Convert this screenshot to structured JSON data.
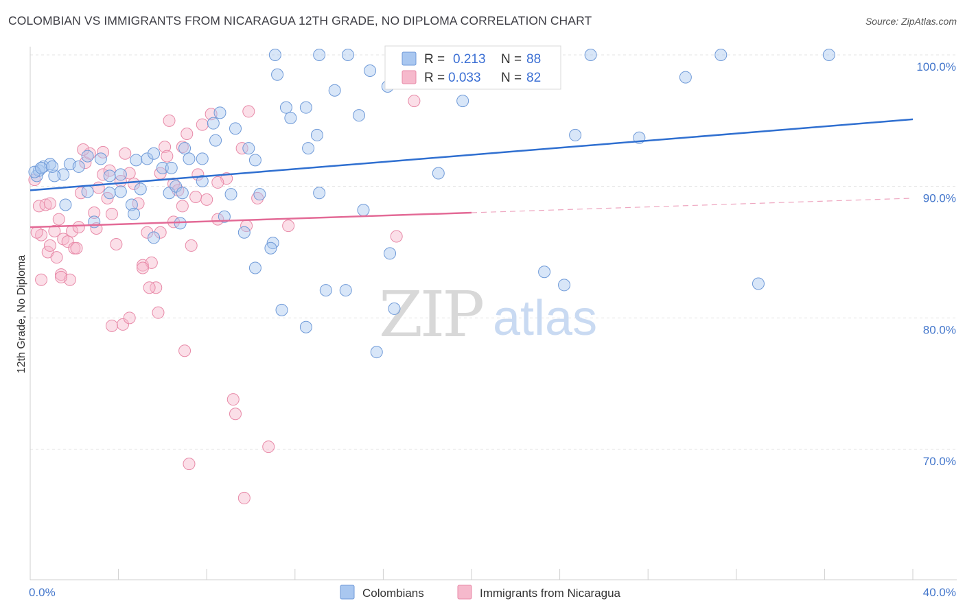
{
  "title": "COLOMBIAN VS IMMIGRANTS FROM NICARAGUA 12TH GRADE, NO DIPLOMA CORRELATION CHART",
  "source": "Source: ZipAtlas.com",
  "watermark": {
    "zip": "ZIP",
    "atlas": "atlas"
  },
  "colors": {
    "blue_fill": "#a9c7f0",
    "blue_stroke": "#6f9ad8",
    "blue_line": "#2f6fd0",
    "pink_fill": "#f6b9cc",
    "pink_stroke": "#e88aa8",
    "pink_line": "#e36a96",
    "grid": "#e3e3e3",
    "label_blue": "#4477cc"
  },
  "legend": {
    "rows": [
      {
        "r_label": "R =",
        "r_value": "0.213",
        "n_label": "N =",
        "n_value": "88"
      },
      {
        "r_label": "R =",
        "r_value": "0.033",
        "n_label": "N =",
        "n_value": "82"
      }
    ]
  },
  "chart_data": {
    "type": "scatter",
    "title": "COLOMBIAN VS IMMIGRANTS FROM NICARAGUA 12TH GRADE, NO DIPLOMA CORRELATION CHART",
    "xlabel": "",
    "ylabel": "12th Grade, No Diploma",
    "x_unit": "%",
    "xlim": [
      0,
      40
    ],
    "ylim": [
      60.5,
      101.5
    ],
    "x_tick_labels": [
      "0.0%",
      "40.0%"
    ],
    "y_ticks": [
      70,
      80,
      90,
      100
    ],
    "y_tick_labels": [
      "70.0%",
      "80.0%",
      "90.0%",
      "100.0%"
    ],
    "grid": "horizontal dashed",
    "legend_position": "top-center",
    "series": [
      {
        "name": "Colombians",
        "R": 0.213,
        "N": 88,
        "trend": {
          "x0": 0,
          "y0": 89.7,
          "x1": 40,
          "y1": 95.1,
          "style": "solid"
        },
        "points": [
          [
            0.3,
            90.8
          ],
          [
            0.4,
            91.2
          ],
          [
            0.6,
            91.5
          ],
          [
            0.9,
            91.7
          ],
          [
            1.5,
            90.9
          ],
          [
            1.8,
            91.7
          ],
          [
            2.2,
            91.5
          ],
          [
            2.6,
            92.3
          ],
          [
            3.2,
            92.1
          ],
          [
            3.6,
            90.8
          ],
          [
            4.1,
            90.9
          ],
          [
            4.8,
            92.0
          ],
          [
            5.3,
            92.1
          ],
          [
            5.6,
            92.5
          ],
          [
            6.0,
            91.4
          ],
          [
            6.4,
            91.4
          ],
          [
            7.0,
            92.9
          ],
          [
            7.2,
            92.1
          ],
          [
            7.8,
            92.1
          ],
          [
            8.3,
            94.8
          ],
          [
            8.6,
            95.6
          ],
          [
            8.4,
            93.5
          ],
          [
            9.3,
            94.4
          ],
          [
            9.9,
            92.9
          ],
          [
            10.2,
            92.0
          ],
          [
            11.1,
            100.0
          ],
          [
            11.2,
            98.5
          ],
          [
            11.6,
            96.0
          ],
          [
            11.8,
            95.2
          ],
          [
            12.6,
            92.9
          ],
          [
            12.5,
            96.0
          ],
          [
            13.0,
            93.9
          ],
          [
            13.1,
            100.0
          ],
          [
            13.8,
            97.3
          ],
          [
            14.4,
            100.0
          ],
          [
            14.9,
            95.4
          ],
          [
            15.4,
            98.8
          ],
          [
            16.2,
            97.6
          ],
          [
            17.2,
            100.0
          ],
          [
            17.8,
            100.0
          ],
          [
            18.3,
            100.0
          ],
          [
            19.6,
            96.5
          ],
          [
            21.8,
            100.0
          ],
          [
            22.9,
            100.0
          ],
          [
            24.7,
            93.9
          ],
          [
            25.4,
            100.0
          ],
          [
            27.6,
            93.7
          ],
          [
            29.7,
            98.3
          ],
          [
            31.3,
            100.0
          ],
          [
            36.2,
            100.0
          ],
          [
            1.1,
            90.8
          ],
          [
            1.6,
            88.6
          ],
          [
            2.6,
            89.6
          ],
          [
            2.9,
            87.3
          ],
          [
            3.6,
            89.5
          ],
          [
            4.1,
            89.6
          ],
          [
            4.6,
            88.6
          ],
          [
            4.7,
            87.9
          ],
          [
            5.0,
            89.8
          ],
          [
            5.6,
            86.1
          ],
          [
            6.3,
            89.5
          ],
          [
            6.6,
            90.0
          ],
          [
            6.8,
            87.2
          ],
          [
            6.9,
            89.5
          ],
          [
            7.8,
            90.4
          ],
          [
            8.8,
            87.7
          ],
          [
            9.1,
            89.4
          ],
          [
            9.7,
            86.5
          ],
          [
            10.2,
            83.8
          ],
          [
            10.4,
            89.4
          ],
          [
            11.0,
            85.7
          ],
          [
            10.9,
            85.3
          ],
          [
            11.4,
            80.6
          ],
          [
            12.5,
            79.3
          ],
          [
            13.1,
            89.5
          ],
          [
            13.4,
            82.1
          ],
          [
            14.3,
            82.1
          ],
          [
            15.1,
            88.2
          ],
          [
            15.7,
            77.4
          ],
          [
            16.3,
            84.9
          ],
          [
            16.5,
            80.7
          ],
          [
            18.5,
            91.0
          ],
          [
            24.2,
            82.5
          ],
          [
            23.3,
            83.5
          ],
          [
            33.0,
            82.6
          ],
          [
            0.2,
            91.1
          ],
          [
            0.5,
            91.4
          ],
          [
            1.0,
            91.5
          ]
        ]
      },
      {
        "name": "Immigrants from Nicaragua",
        "R": 0.033,
        "N": 82,
        "trend": {
          "x0": 0,
          "y0": 86.9,
          "x1": 20,
          "y1": 88.0,
          "dashed_to_x": 40,
          "dashed_to_y": 89.1
        },
        "points": [
          [
            0.2,
            90.5
          ],
          [
            0.4,
            88.5
          ],
          [
            0.5,
            86.3
          ],
          [
            0.7,
            88.6
          ],
          [
            0.9,
            88.7
          ],
          [
            1.1,
            86.6
          ],
          [
            1.3,
            87.5
          ],
          [
            1.5,
            86.0
          ],
          [
            1.7,
            85.8
          ],
          [
            1.9,
            86.6
          ],
          [
            2.0,
            85.3
          ],
          [
            2.2,
            86.9
          ],
          [
            2.3,
            89.5
          ],
          [
            2.5,
            91.8
          ],
          [
            2.7,
            92.5
          ],
          [
            2.9,
            88.0
          ],
          [
            3.1,
            89.9
          ],
          [
            3.3,
            90.9
          ],
          [
            3.5,
            89.1
          ],
          [
            3.7,
            87.9
          ],
          [
            3.9,
            85.6
          ],
          [
            4.1,
            90.4
          ],
          [
            4.3,
            92.5
          ],
          [
            4.5,
            91.0
          ],
          [
            4.7,
            90.2
          ],
          [
            4.9,
            88.7
          ],
          [
            5.1,
            84.0
          ],
          [
            5.3,
            86.5
          ],
          [
            5.5,
            84.2
          ],
          [
            5.7,
            82.3
          ],
          [
            5.9,
            91.0
          ],
          [
            6.1,
            93.0
          ],
          [
            6.3,
            95.0
          ],
          [
            6.5,
            90.2
          ],
          [
            6.7,
            89.7
          ],
          [
            6.9,
            93.0
          ],
          [
            7.1,
            94.0
          ],
          [
            7.3,
            85.5
          ],
          [
            7.5,
            89.2
          ],
          [
            7.8,
            94.7
          ],
          [
            8.0,
            89.0
          ],
          [
            8.2,
            95.5
          ],
          [
            8.5,
            87.5
          ],
          [
            8.9,
            90.6
          ],
          [
            9.2,
            73.8
          ],
          [
            9.3,
            72.7
          ],
          [
            9.6,
            92.9
          ],
          [
            9.9,
            95.7
          ],
          [
            10.3,
            89.1
          ],
          [
            10.8,
            70.2
          ],
          [
            11.7,
            87.0
          ],
          [
            16.6,
            86.2
          ],
          [
            17.4,
            96.5
          ],
          [
            0.3,
            86.5
          ],
          [
            0.5,
            82.9
          ],
          [
            0.8,
            85.0
          ],
          [
            1.2,
            84.6
          ],
          [
            1.4,
            83.3
          ],
          [
            1.8,
            82.9
          ],
          [
            2.1,
            85.3
          ],
          [
            3.0,
            86.8
          ],
          [
            3.3,
            92.6
          ],
          [
            3.7,
            79.4
          ],
          [
            4.2,
            79.5
          ],
          [
            4.5,
            80.0
          ],
          [
            5.1,
            83.8
          ],
          [
            5.4,
            82.3
          ],
          [
            5.8,
            80.4
          ],
          [
            5.9,
            86.5
          ],
          [
            6.2,
            92.3
          ],
          [
            6.5,
            87.3
          ],
          [
            6.9,
            88.5
          ],
          [
            7.0,
            77.5
          ],
          [
            7.2,
            68.9
          ],
          [
            7.6,
            90.9
          ],
          [
            8.5,
            90.3
          ],
          [
            9.7,
            66.3
          ],
          [
            9.8,
            87.0
          ],
          [
            1.4,
            83.1
          ],
          [
            2.4,
            92.8
          ],
          [
            3.6,
            91.2
          ],
          [
            0.9,
            85.5
          ]
        ]
      }
    ]
  },
  "bottom_legend": {
    "items": [
      "Colombians",
      "Immigrants from Nicaragua"
    ]
  }
}
